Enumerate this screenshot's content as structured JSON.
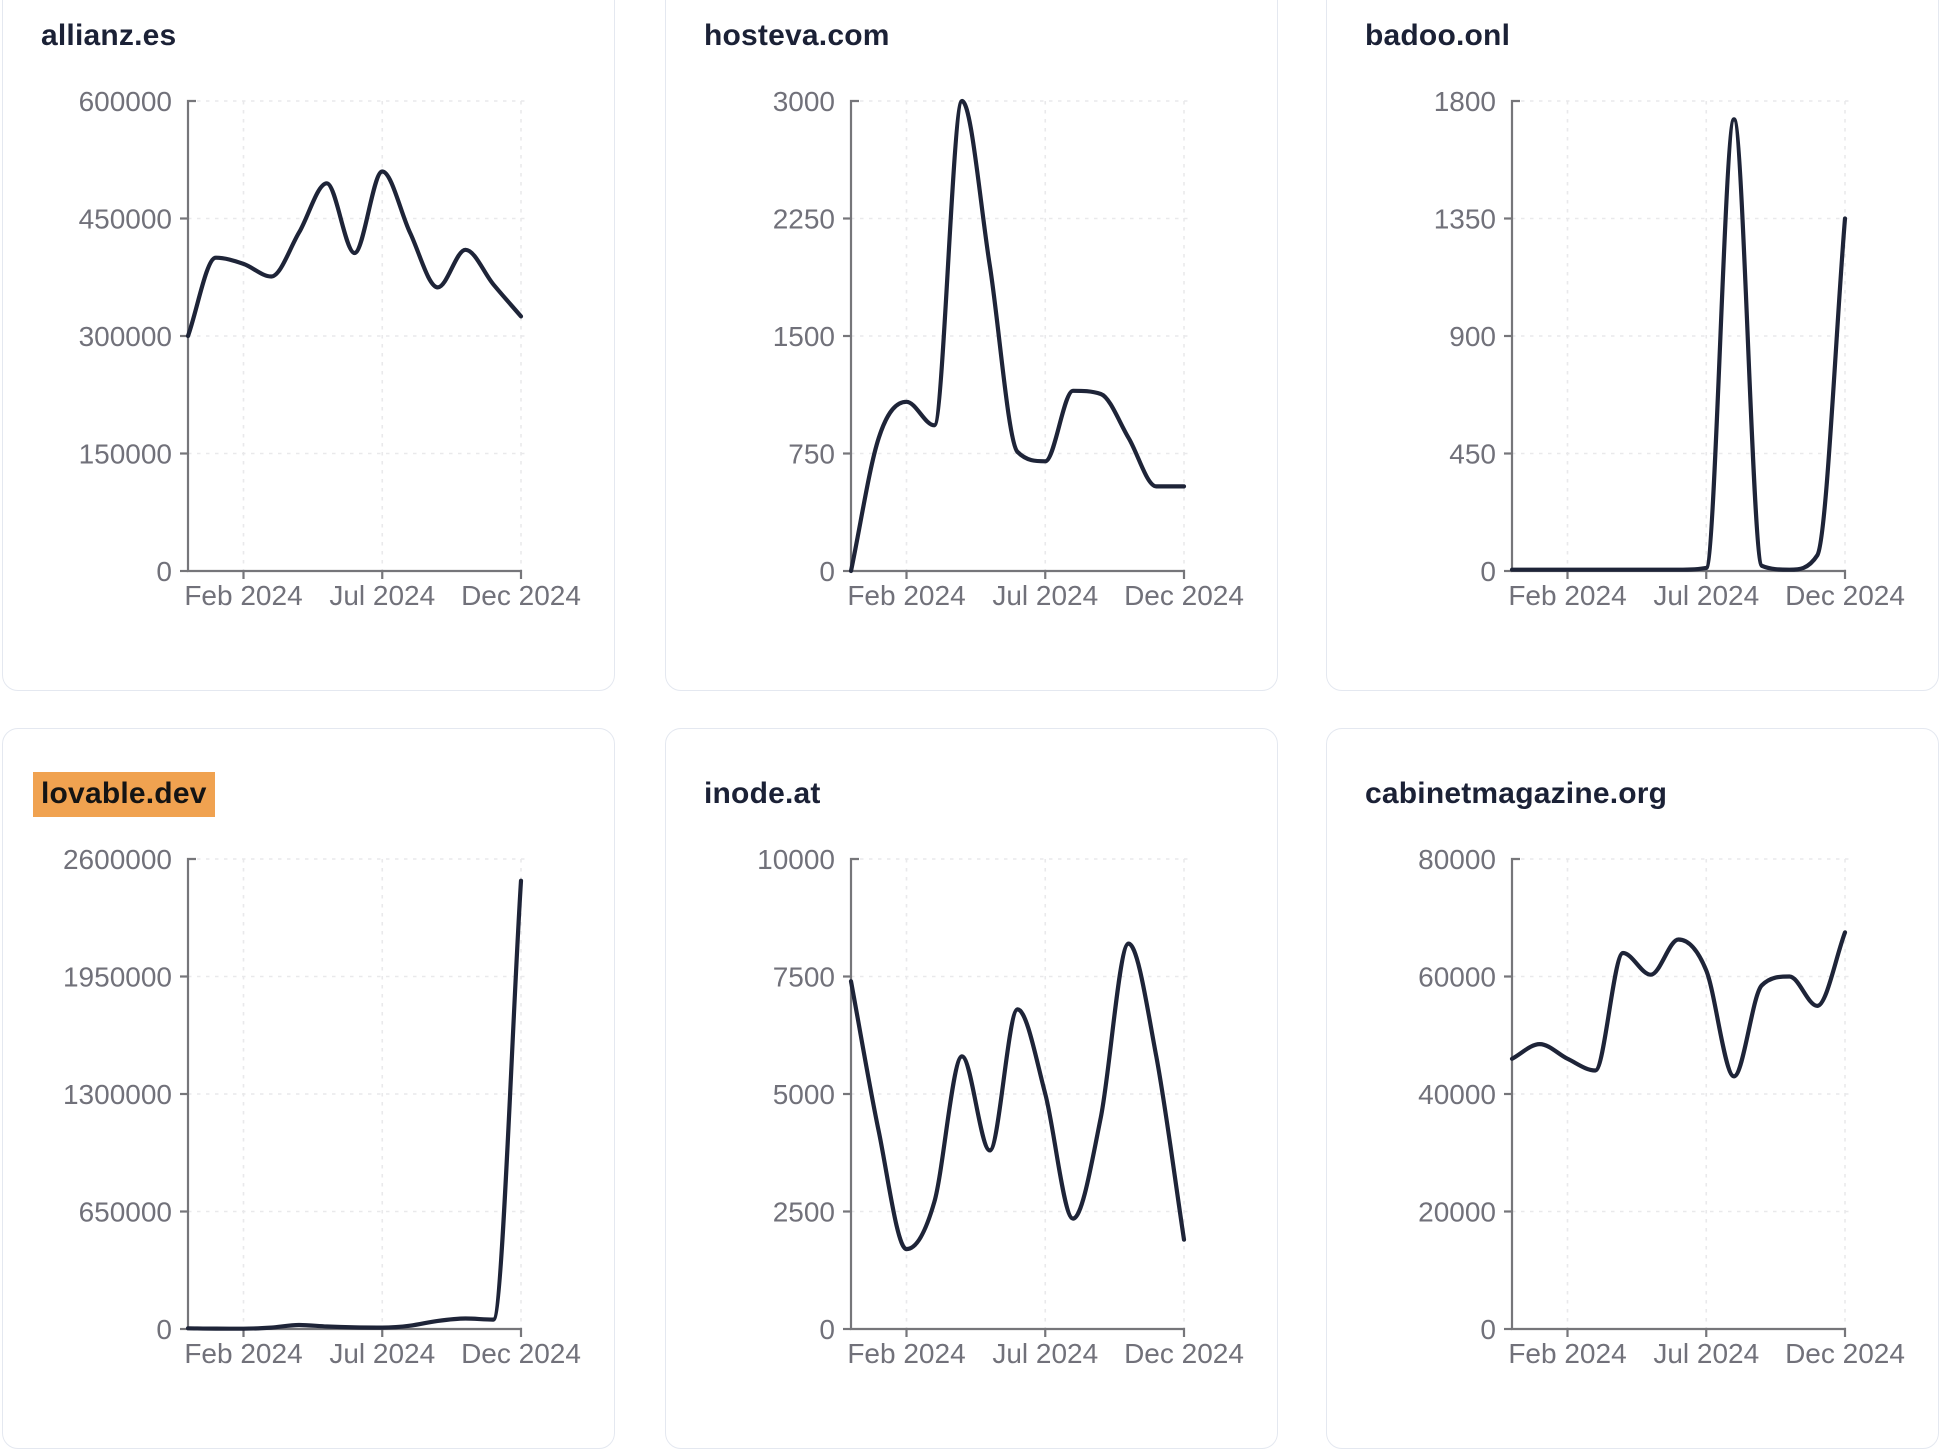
{
  "page": {
    "background": "#ffffff",
    "description_labels": {
      "x_tick_labels": [
        "Feb 2024",
        "Jul 2024",
        "Dec 2024"
      ]
    }
  },
  "colors": {
    "line": "#1e2438",
    "title": "#1b2136",
    "tick_label": "#71717a",
    "axis": "#76767a",
    "grid": "#e9e9eb",
    "card_border": "#e4e8f0",
    "card_bg": "#ffffff",
    "highlight_bg": "#f0a250",
    "highlight_text": "#141414"
  },
  "chart_data": [
    {
      "type": "line",
      "title": "allianz.es",
      "highlighted": false,
      "x": [
        "Dec 2023",
        "Jan 2024",
        "Feb 2024",
        "Mar 2024",
        "Apr 2024",
        "May 2024",
        "Jun 2024",
        "Jul 2024",
        "Aug 2024",
        "Sep 2024",
        "Oct 2024",
        "Nov 2024",
        "Dec 2024"
      ],
      "x_ticks": [
        "Feb 2024",
        "Jul 2024",
        "Dec 2024"
      ],
      "x_tick_indices": [
        2,
        7,
        12
      ],
      "values": [
        300000,
        400000,
        392000,
        376000,
        432000,
        495000,
        406000,
        510000,
        432000,
        362000,
        410000,
        366000,
        325000
      ],
      "yticks": [
        0,
        150000,
        300000,
        450000,
        600000
      ],
      "ylim": [
        0,
        600000
      ],
      "grid": true,
      "legend": "none"
    },
    {
      "type": "line",
      "title": "hosteva.com",
      "highlighted": false,
      "x": [
        "Dec 2023",
        "Jan 2024",
        "Feb 2024",
        "Mar 2024",
        "Apr 2024",
        "May 2024",
        "Jun 2024",
        "Jul 2024",
        "Aug 2024",
        "Sep 2024",
        "Oct 2024",
        "Nov 2024",
        "Dec 2024"
      ],
      "x_ticks": [
        "Feb 2024",
        "Jul 2024",
        "Dec 2024"
      ],
      "x_tick_indices": [
        2,
        7,
        12
      ],
      "values": [
        0,
        850,
        1080,
        930,
        3000,
        1950,
        760,
        700,
        1150,
        1130,
        850,
        540,
        540
      ],
      "yticks": [
        0,
        750,
        1500,
        2250,
        3000
      ],
      "ylim": [
        0,
        3000
      ],
      "grid": true,
      "legend": "none"
    },
    {
      "type": "line",
      "title": "badoo.onl",
      "highlighted": false,
      "x": [
        "Dec 2023",
        "Jan 2024",
        "Feb 2024",
        "Mar 2024",
        "Apr 2024",
        "May 2024",
        "Jun 2024",
        "Jul 2024",
        "Aug 2024",
        "Sep 2024",
        "Oct 2024",
        "Nov 2024",
        "Dec 2024"
      ],
      "x_ticks": [
        "Feb 2024",
        "Jul 2024",
        "Dec 2024"
      ],
      "x_tick_indices": [
        2,
        7,
        12
      ],
      "values": [
        5,
        5,
        5,
        5,
        5,
        5,
        5,
        12,
        1730,
        20,
        5,
        60,
        1350
      ],
      "yticks": [
        0,
        450,
        900,
        1350,
        1800
      ],
      "ylim": [
        0,
        1800
      ],
      "grid": true,
      "legend": "none"
    },
    {
      "type": "line",
      "title": "lovable.dev",
      "highlighted": true,
      "x": [
        "Dec 2023",
        "Jan 2024",
        "Feb 2024",
        "Mar 2024",
        "Apr 2024",
        "May 2024",
        "Jun 2024",
        "Jul 2024",
        "Aug 2024",
        "Sep 2024",
        "Oct 2024",
        "Nov 2024",
        "Dec 2024"
      ],
      "x_ticks": [
        "Feb 2024",
        "Jul 2024",
        "Dec 2024"
      ],
      "x_tick_indices": [
        2,
        7,
        12
      ],
      "values": [
        4000,
        2000,
        1500,
        8000,
        22000,
        14000,
        9000,
        8000,
        18000,
        45000,
        58000,
        52000,
        2480000
      ],
      "yticks": [
        0,
        650000,
        1300000,
        1950000,
        2600000
      ],
      "ylim": [
        0,
        2600000
      ],
      "grid": true,
      "legend": "none"
    },
    {
      "type": "line",
      "title": "inode.at",
      "highlighted": false,
      "x": [
        "Dec 2023",
        "Jan 2024",
        "Feb 2024",
        "Mar 2024",
        "Apr 2024",
        "May 2024",
        "Jun 2024",
        "Jul 2024",
        "Aug 2024",
        "Sep 2024",
        "Oct 2024",
        "Nov 2024",
        "Dec 2024"
      ],
      "x_ticks": [
        "Feb 2024",
        "Jul 2024",
        "Dec 2024"
      ],
      "x_tick_indices": [
        2,
        7,
        12
      ],
      "values": [
        7400,
        4200,
        1700,
        2700,
        5800,
        3800,
        6800,
        5000,
        2350,
        4500,
        8200,
        5800,
        1900
      ],
      "yticks": [
        0,
        2500,
        5000,
        7500,
        10000
      ],
      "ylim": [
        0,
        10000
      ],
      "grid": true,
      "legend": "none"
    },
    {
      "type": "line",
      "title": "cabinetmagazine.org",
      "highlighted": false,
      "x": [
        "Dec 2023",
        "Jan 2024",
        "Feb 2024",
        "Mar 2024",
        "Apr 2024",
        "May 2024",
        "Jun 2024",
        "Jul 2024",
        "Aug 2024",
        "Sep 2024",
        "Oct 2024",
        "Nov 2024",
        "Dec 2024"
      ],
      "x_ticks": [
        "Feb 2024",
        "Jul 2024",
        "Dec 2024"
      ],
      "x_tick_indices": [
        2,
        7,
        12
      ],
      "values": [
        46000,
        48500,
        46000,
        44000,
        64000,
        60300,
        66300,
        61000,
        43000,
        58500,
        60000,
        55000,
        67500
      ],
      "yticks": [
        0,
        20000,
        40000,
        60000,
        80000
      ],
      "ylim": [
        0,
        80000
      ],
      "grid": true,
      "legend": "none"
    }
  ]
}
